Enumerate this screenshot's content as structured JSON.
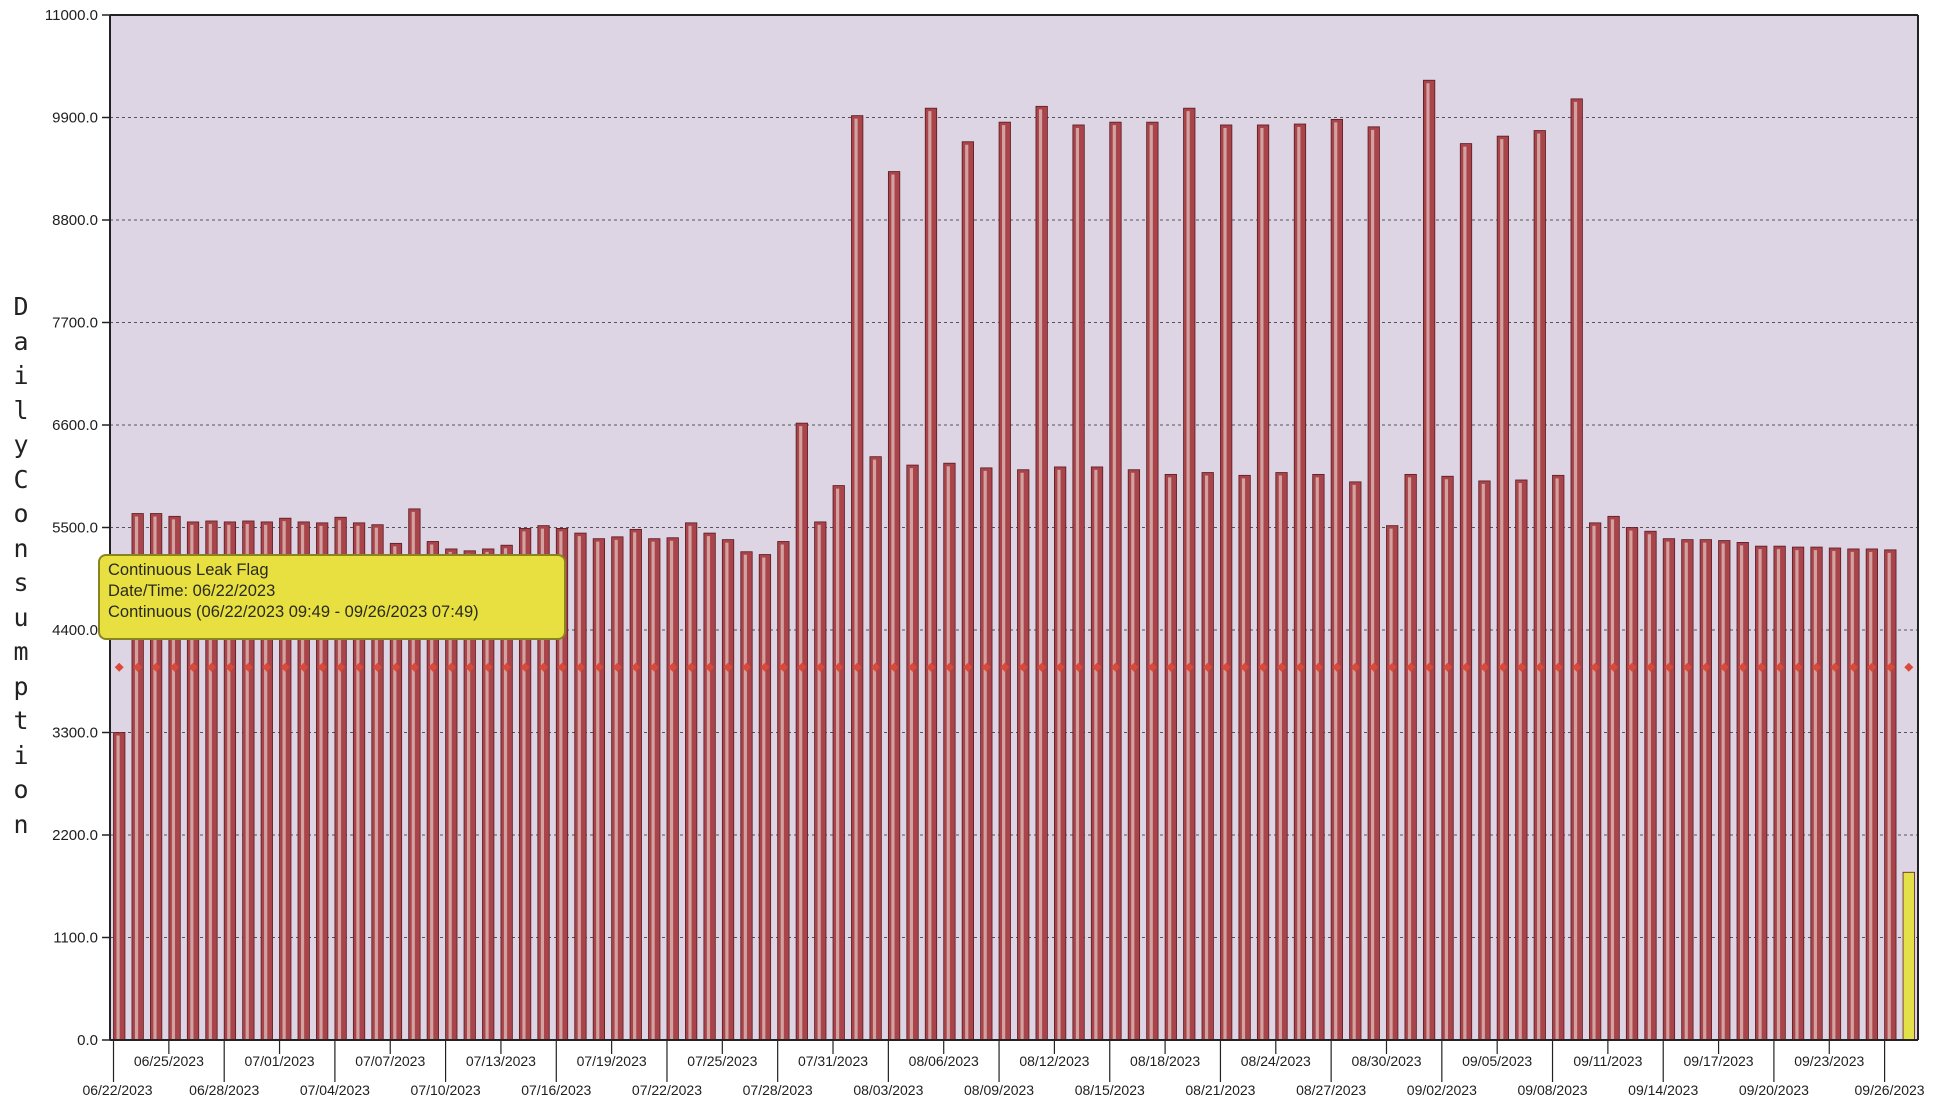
{
  "chart_data": {
    "type": "bar",
    "title": "",
    "ylabel": "Daily Consumption",
    "xlabel": "",
    "ylim": [
      0,
      11000
    ],
    "y_ticks": [
      "0.0",
      "1100.0",
      "2200.0",
      "3300.0",
      "4400.0",
      "5500.0",
      "6600.0",
      "7700.0",
      "8800.0",
      "9900.0",
      "11000.0"
    ],
    "grid": true,
    "start_date": "06/22/2023",
    "x_tick_labels": [
      "06/22/2023",
      "06/25/2023",
      "06/28/2023",
      "07/01/2023",
      "07/04/2023",
      "07/07/2023",
      "07/10/2023",
      "07/13/2023",
      "07/16/2023",
      "07/19/2023",
      "07/22/2023",
      "07/25/2023",
      "07/28/2023",
      "07/31/2023",
      "08/03/2023",
      "08/06/2023",
      "08/09/2023",
      "08/12/2023",
      "08/15/2023",
      "08/18/2023",
      "08/21/2023",
      "08/24/2023",
      "08/27/2023",
      "08/30/2023",
      "09/02/2023",
      "09/05/2023",
      "09/08/2023",
      "09/11/2023",
      "09/14/2023",
      "09/17/2023",
      "09/20/2023",
      "09/23/2023",
      "09/26/2023"
    ],
    "values": [
      3300,
      5650,
      5650,
      5620,
      5560,
      5570,
      5560,
      5570,
      5560,
      5600,
      5560,
      5550,
      5610,
      5550,
      5530,
      5330,
      5700,
      5350,
      5270,
      5250,
      5270,
      5310,
      5490,
      5520,
      5490,
      5440,
      5380,
      5400,
      5480,
      5380,
      5390,
      5550,
      5440,
      5370,
      5240,
      5210,
      5350,
      6620,
      5560,
      5950,
      9920,
      6260,
      9320,
      6170,
      10000,
      6190,
      9640,
      6140,
      9850,
      6120,
      10020,
      6150,
      9820,
      6150,
      9850,
      6120,
      9850,
      6070,
      10000,
      6090,
      9820,
      6060,
      9820,
      6090,
      9830,
      6070,
      9880,
      5990,
      9800,
      5520,
      6070,
      10300,
      6050,
      9620,
      6000,
      9700,
      6010,
      9760,
      6060,
      10100,
      5550,
      5620,
      5500,
      5460,
      5380,
      5370,
      5370,
      5360,
      5340,
      5300,
      5300,
      5290,
      5290,
      5280,
      5270,
      5270,
      5260,
      1800
    ],
    "highlighted_bar": "09/26/2023",
    "series": [
      {
        "name": "Daily Consumption",
        "color": "#a8444a"
      },
      {
        "name": "Continuous Leak Flag",
        "color": "#d94a3a"
      }
    ],
    "leak_flag_level": 4000,
    "annotation": {
      "lines": [
        "Continuous Leak Flag",
        "Date/Time: 06/22/2023",
        "Continuous (06/22/2023 09:49 - 09/26/2023 07:49)"
      ]
    }
  },
  "colors": {
    "plot_bg": "#ddd5e4",
    "bar_fill": "#a8444a",
    "bar_edge": "#5a1a22",
    "bar_highlight": "#f2f0e8",
    "highlight_fill": "#e4e048",
    "leak_marker": "#d94a3a",
    "grid": "#555555",
    "axis": "#222222"
  }
}
